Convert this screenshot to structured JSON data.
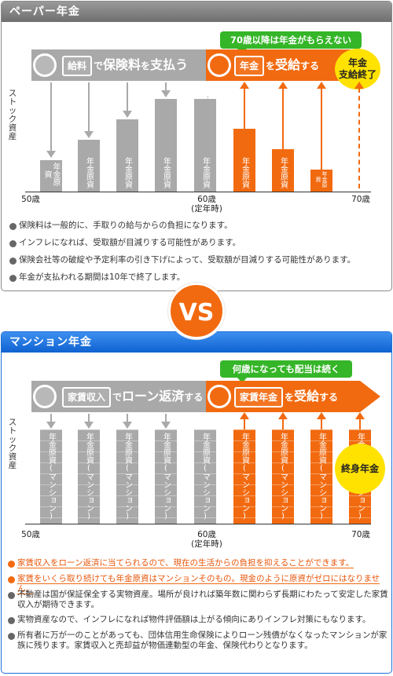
{
  "vs_label": "VS",
  "paper": {
    "title": "ペーパー年金",
    "callout": "70歳以降は年金がもらえない",
    "band_left": {
      "pre": "給料",
      "mid": "で",
      "main": "保険料",
      "post1": "を",
      "main2": "支払う"
    },
    "band_right": {
      "box": "年金",
      "mid": "を",
      "main": "受給",
      "post": "する"
    },
    "badge": "年金\n支給終了",
    "y_label": "ストック資産",
    "bar_label": "年金原資",
    "ticks": {
      "t50": "50歳",
      "t60": "60歳",
      "t60_sub": "(定年時)",
      "t70": "70歳"
    },
    "notes": [
      "保険料は一般的に、手取りの給与からの負担になります。",
      "インフレになれば、受取額が目減りする可能性があります。",
      "保険会社等の破綻や予定利率の引き下げによって、受取額が目減りする可能性があります。",
      "年金が支払われる期間は10年で終了します。"
    ]
  },
  "mansion": {
    "title": "マンション年金",
    "callout": "何歳になっても配当は続く",
    "band_left": {
      "pre": "家賃収入",
      "mid": "で",
      "main": "ローン返済",
      "post": "する"
    },
    "band_right": {
      "box": "家賃年金",
      "mid": "を",
      "main": "受給",
      "post": "する"
    },
    "badge": "終身年金",
    "y_label": "ストック資産",
    "bar_label": "年金原資(マンション)",
    "ticks": {
      "t50": "50歳",
      "t60": "60歳",
      "t60_sub": "(定年時)",
      "t70": "70歳"
    },
    "notes_highlight": [
      "家賃収入をローン返済に当てられるので、現在の生活からの負担を抑えることができます。",
      "家賃をいくら取り続けても年金原資はマンションそのもの。現金のように原資がゼロにはなりません。"
    ],
    "notes": [
      "不動産は国が保証保全する実物資産。場所が良ければ築年数に関わらず長期にわたって安定した家賃収入が期待できます。",
      "実物資産なので、インフレになれば物件評価額は上がる傾向にありインフレ対策にもなります。",
      "所有者に万が一のことがあっても、団体信用生命保険によりローン残債がなくなったマンションが家族に残ります。家賃収入と売却益が物価連動型の年金、保険代わりとなります。"
    ]
  },
  "colors": {
    "orange": "#f26a10",
    "gray": "#a9a9a9",
    "green": "#35b528",
    "yellow": "#ffe200",
    "blue": "#1f6fd6"
  }
}
